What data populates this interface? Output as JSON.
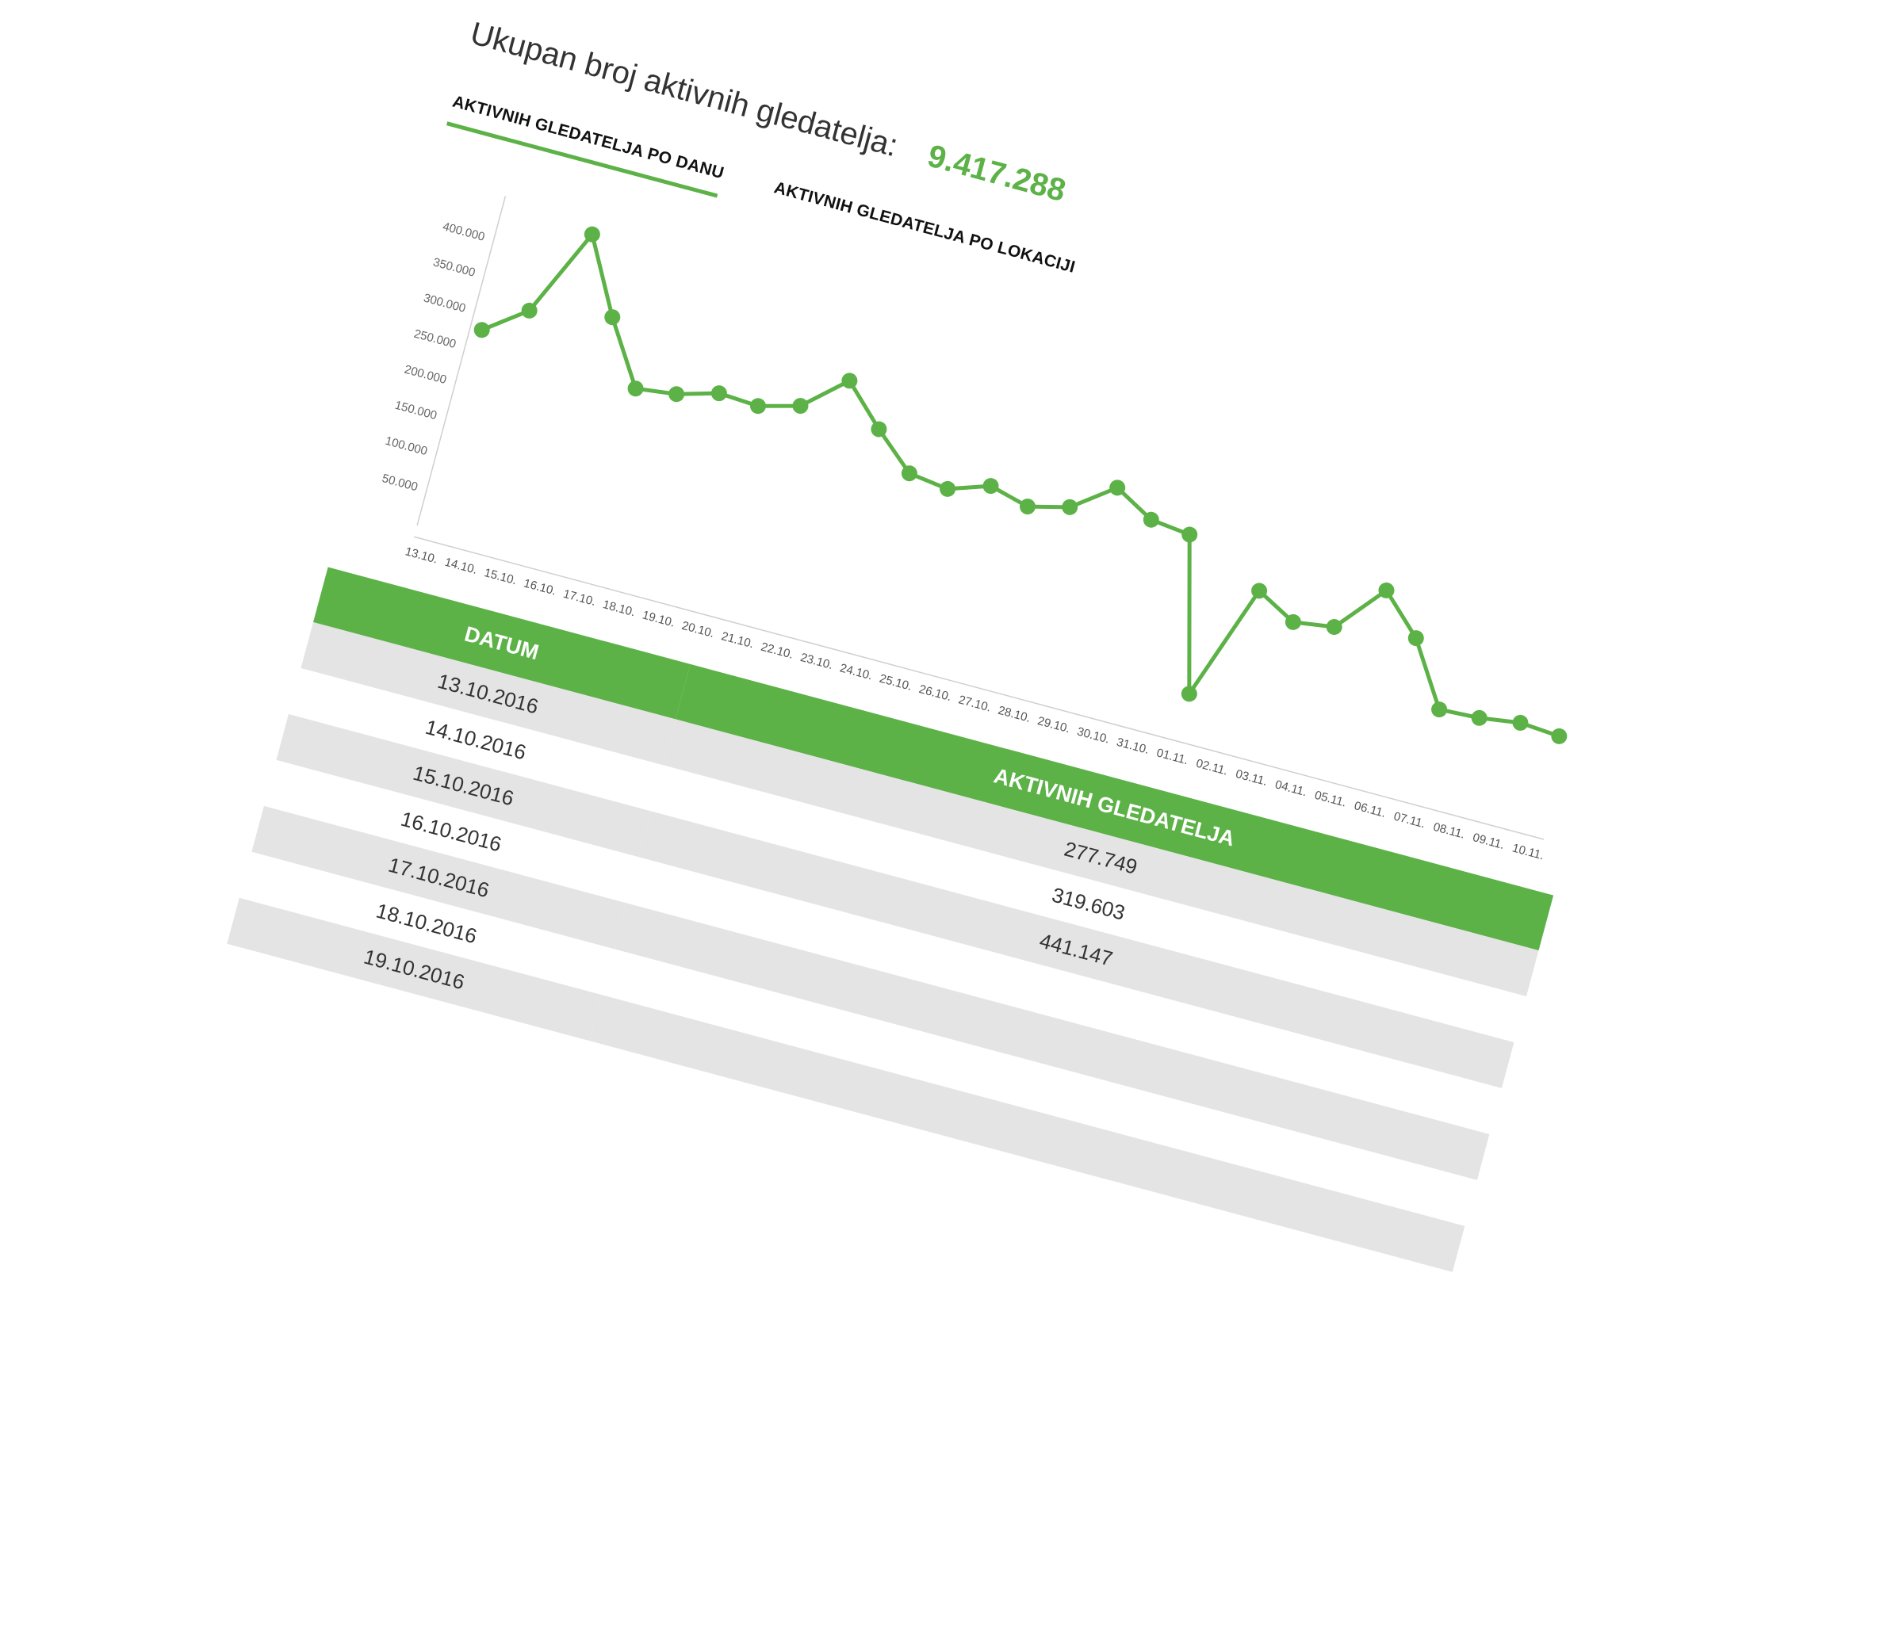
{
  "summary": {
    "label": "Ukupan broj aktivnih gledatelja:",
    "total": "9.417.288"
  },
  "tabs": [
    {
      "label": "AKTIVNIH GLEDATELJA PO DANU",
      "active": true
    },
    {
      "label": "AKTIVNIH GLEDATELJA PO LOKACIJI",
      "active": false
    }
  ],
  "colors": {
    "accent": "#5cb247",
    "row_stripe": "#e4e4e4"
  },
  "chart_data": {
    "type": "line",
    "x": [
      "13.10.",
      "14.10.",
      "15.10.",
      "16.10.",
      "17.10.",
      "18.10.",
      "19.10.",
      "20.10.",
      "21.10.",
      "22.10.",
      "23.10.",
      "24.10.",
      "25.10.",
      "26.10.",
      "27.10.",
      "28.10.",
      "29.10.",
      "30.10.",
      "31.10.",
      "01.11.",
      "02.11.",
      "03.11.",
      "04.11.",
      "05.11.",
      "06.11.",
      "07.11.",
      "08.11.",
      "09.11.",
      "10.11."
    ],
    "values": [
      277749,
      319603,
      441147,
      340000,
      255000,
      262000,
      278000,
      275000,
      290000,
      340000,
      287000,
      240000,
      233000,
      252000,
      238000,
      252000,
      294000,
      264000,
      258000,
      50000,
      209000,
      180000,
      188000,
      254000,
      202000,
      117000,
      120000,
      128000,
      124000
    ],
    "y_ticks": [
      "50.000",
      "100.000",
      "150.000",
      "200.000",
      "250.000",
      "300.000",
      "350.000",
      "400.000"
    ],
    "ylim": [
      0,
      450000
    ],
    "grid": false,
    "title": "",
    "xlabel": "",
    "ylabel": ""
  },
  "table": {
    "headers": [
      "DATUM",
      "AKTIVNIH GLEDATELJA"
    ],
    "rows": [
      [
        "13.10.2016",
        "277.749"
      ],
      [
        "14.10.2016",
        "319.603"
      ],
      [
        "15.10.2016",
        "441.147"
      ],
      [
        "16.10.2016",
        ""
      ],
      [
        "17.10.2016",
        ""
      ],
      [
        "18.10.2016",
        ""
      ],
      [
        "19.10.2016",
        ""
      ]
    ]
  }
}
